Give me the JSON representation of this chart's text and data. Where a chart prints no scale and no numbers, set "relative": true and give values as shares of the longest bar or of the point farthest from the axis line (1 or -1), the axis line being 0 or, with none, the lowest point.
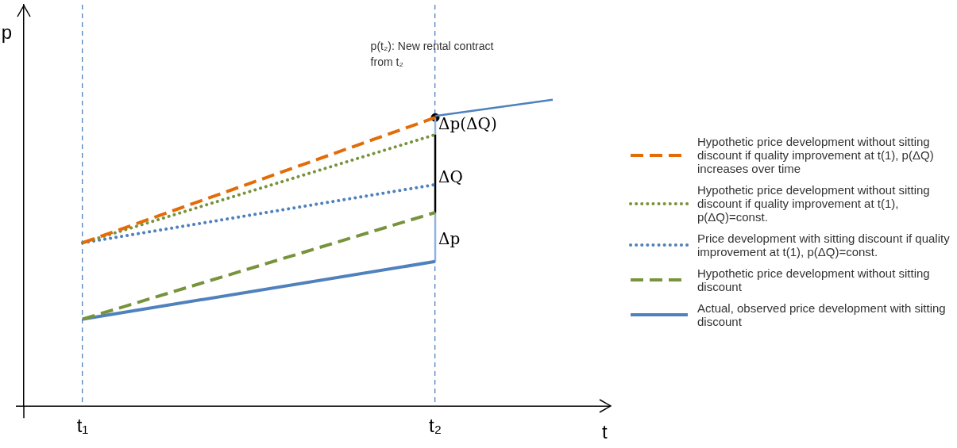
{
  "chart_data": {
    "type": "line",
    "relative": true,
    "xlabel": "t",
    "ylabel": "p",
    "categories": [
      "t₁",
      null,
      null,
      "t₂",
      null
    ],
    "legend": "right",
    "grid": "x",
    "series": [
      {
        "name": "Hypothetic price development  without sitting discount if quality improvement at t(1), p(ΔQ) increases over time",
        "color": "#e36c09",
        "line_style": "dashed",
        "x": [
          "t₁",
          "t₂"
        ],
        "values": [
          0.533,
          0.942
        ]
      },
      {
        "name": "Hypothetic price development  without sitting discount if quality improvement at t(1), p(ΔQ)=const.",
        "color": "#77933c",
        "line_style": "dotted",
        "x": [
          "t₁",
          "t₂"
        ],
        "values": [
          0.533,
          0.886
        ]
      },
      {
        "name": "Price development with sitting discount if quality improvement at t(1), p(ΔQ)=const.",
        "color": "#4f81bd",
        "line_style": "dotted",
        "x": [
          "t₁",
          "t₂"
        ],
        "values": [
          0.533,
          0.723
        ]
      },
      {
        "name": "Hypothetic price development without sitting discount",
        "color": "#77933c",
        "line_style": "dashed",
        "x": [
          "t₁",
          "t₂"
        ],
        "values": [
          0.284,
          0.632
        ]
      },
      {
        "name": "Actual, observed price development with sitting discount",
        "color": "#4f81bd",
        "line_style": "solid",
        "x": [
          "t₁",
          "t₂"
        ],
        "values": [
          0.284,
          0.472
        ]
      },
      {
        "color": "#4f81bd",
        "line_style": "solid",
        "values": [
          null,
          null,
          null,
          0.947,
          1
        ]
      },
      {
        "color": "#8db3e2",
        "line_style": "solid",
        "x": [
          "t₂",
          "t₂"
        ],
        "values": [
          0.472,
          0.632
        ]
      },
      {
        "color": "#000000",
        "line_style": "solid",
        "x": [
          "t₂",
          "t₂"
        ],
        "values": [
          0.632,
          0.886
        ]
      },
      {
        "color": "#8db3e2",
        "line_style": "solid",
        "x": [
          "t₂",
          "t₂"
        ],
        "values": [
          0.886,
          0.942
        ]
      },
      {
        "type": "scatter",
        "marker": "circle",
        "color": "#000000",
        "x": [
          "t₂"
        ],
        "values": [
          0.942
        ]
      }
    ],
    "annotations": [
      "p(t₂): New rental contract from t₂",
      {
        "text": "Δp(ΔQ)",
        "x": "t₂",
        "y": 0.916
      },
      {
        "text": "ΔQ",
        "x": "t₂",
        "y": 0.744
      },
      {
        "text": "Δp",
        "x": "t₂",
        "y": 0.543
      }
    ]
  }
}
